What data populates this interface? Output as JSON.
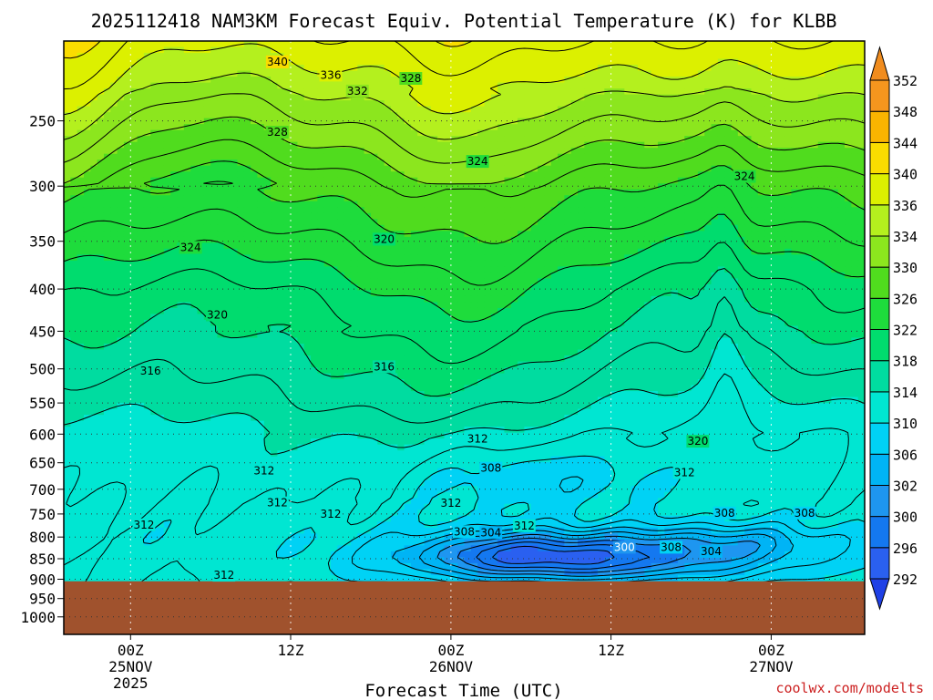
{
  "chart_data": {
    "type": "heatmap",
    "title": "2025112418 NAM3KM Forecast Equiv. Potential Temperature (K) for KLBB",
    "xlabel": "Forecast Time (UTC)",
    "ylabel": "",
    "watermark": "coolwx.com/modelts",
    "x_range_hours_from_00z_25nov": [
      -5,
      55
    ],
    "x_ticks": [
      {
        "hours": 0,
        "label": "00Z",
        "date": "25NOV",
        "year": "2025"
      },
      {
        "hours": 12,
        "label": "12Z",
        "date": "",
        "year": ""
      },
      {
        "hours": 24,
        "label": "00Z",
        "date": "26NOV",
        "year": ""
      },
      {
        "hours": 36,
        "label": "12Z",
        "date": "",
        "year": ""
      },
      {
        "hours": 48,
        "label": "00Z",
        "date": "27NOV",
        "year": ""
      }
    ],
    "y_axis": {
      "type": "log",
      "units": "hPa",
      "top": 200,
      "bottom": 1050,
      "ticks": [
        250,
        300,
        350,
        400,
        450,
        500,
        550,
        600,
        650,
        700,
        750,
        800,
        850,
        900,
        950,
        1000
      ]
    },
    "terrain_pressure_hPa": 905,
    "terrain_color": "#a0522d",
    "grid": "dotted",
    "colorbar": {
      "levels": [
        292,
        296,
        300,
        302,
        306,
        310,
        314,
        318,
        322,
        326,
        330,
        334,
        336,
        340,
        344,
        348,
        352
      ],
      "colors": [
        "#1f40e6",
        "#2a60f0",
        "#1478f0",
        "#1e96f0",
        "#00b4f5",
        "#00d2f5",
        "#00e6d2",
        "#00dca0",
        "#00dc6e",
        "#1edc3c",
        "#50dc1e",
        "#8ce61e",
        "#b4f01e",
        "#dcf000",
        "#fadc00",
        "#fab400",
        "#f5961e",
        "#f08c1e"
      ],
      "labels": [
        "292",
        "296",
        "300",
        "302",
        "306",
        "310",
        "314",
        "318",
        "322",
        "326",
        "330",
        "334",
        "336",
        "340",
        "344",
        "348",
        "352"
      ]
    },
    "contour_interval_K": 2,
    "contour_labels": [
      {
        "v": 340,
        "h": 11.0,
        "p": 212
      },
      {
        "v": 336,
        "h": 15.0,
        "p": 220
      },
      {
        "v": 332,
        "h": 17.0,
        "p": 230
      },
      {
        "v": 328,
        "h": 21.0,
        "p": 222
      },
      {
        "v": 328,
        "h": 11.0,
        "p": 258
      },
      {
        "v": 324,
        "h": 26.0,
        "p": 280
      },
      {
        "v": 324,
        "h": 46.0,
        "p": 292
      },
      {
        "v": 324,
        "h": 4.5,
        "p": 356
      },
      {
        "v": 320,
        "h": 19.0,
        "p": 348
      },
      {
        "v": 320,
        "h": 6.5,
        "p": 430
      },
      {
        "v": 320,
        "h": 42.5,
        "p": 612
      },
      {
        "v": 316,
        "h": 1.5,
        "p": 503
      },
      {
        "v": 316,
        "h": 19.0,
        "p": 497
      },
      {
        "v": 312,
        "h": 26.0,
        "p": 608
      },
      {
        "v": 312,
        "h": 10.0,
        "p": 665
      },
      {
        "v": 312,
        "h": 41.5,
        "p": 668
      },
      {
        "v": 308,
        "h": 27.0,
        "p": 660
      },
      {
        "v": 312,
        "h": 11.0,
        "p": 727
      },
      {
        "v": 312,
        "h": 15.0,
        "p": 750
      },
      {
        "v": 312,
        "h": 1.0,
        "p": 773
      },
      {
        "v": 312,
        "h": 24.0,
        "p": 728
      },
      {
        "v": 308,
        "h": 44.5,
        "p": 748
      },
      {
        "v": 308,
        "h": 50.5,
        "p": 748
      },
      {
        "v": 312,
        "h": 29.5,
        "p": 775
      },
      {
        "v": 308,
        "h": 25.0,
        "p": 788
      },
      {
        "v": 304,
        "h": 27.0,
        "p": 790
      },
      {
        "v": 300,
        "h": 37.0,
        "p": 823
      },
      {
        "v": 308,
        "h": 40.5,
        "p": 823
      },
      {
        "v": 304,
        "h": 43.5,
        "p": 833
      },
      {
        "v": 312,
        "h": 7.0,
        "p": 890
      }
    ]
  }
}
